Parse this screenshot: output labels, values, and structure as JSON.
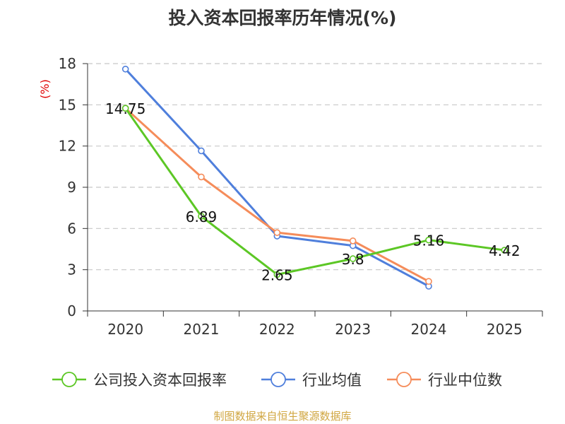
{
  "chart_data": {
    "type": "line",
    "title": "投入资本回报率历年情况(%)",
    "ylabel": "(%)",
    "xlabel": "",
    "ylim": [
      0,
      18
    ],
    "yticks": [
      0,
      3,
      6,
      9,
      12,
      15,
      18
    ],
    "grid": true,
    "legend_position": "bottom",
    "categories": [
      "2020",
      "2021",
      "2022",
      "2023",
      "2024",
      "2025"
    ],
    "series": [
      {
        "name": "公司投入资本回报率",
        "color": "#5cc725",
        "values": [
          14.75,
          6.89,
          2.65,
          3.8,
          5.16,
          4.42
        ],
        "labels": [
          "14.75",
          "6.89",
          "2.65",
          "3.8",
          "5.16",
          "4.42"
        ]
      },
      {
        "name": "行业均值",
        "color": "#4f7fdc",
        "values": [
          17.6,
          11.65,
          5.45,
          4.75,
          1.8,
          null
        ]
      },
      {
        "name": "行业中位数",
        "color": "#f58c5a",
        "values": [
          14.75,
          9.75,
          5.7,
          5.1,
          2.15,
          null
        ]
      }
    ]
  },
  "source": {
    "text": "制图数据来自恒生聚源数据库",
    "color": "#d0a640"
  }
}
